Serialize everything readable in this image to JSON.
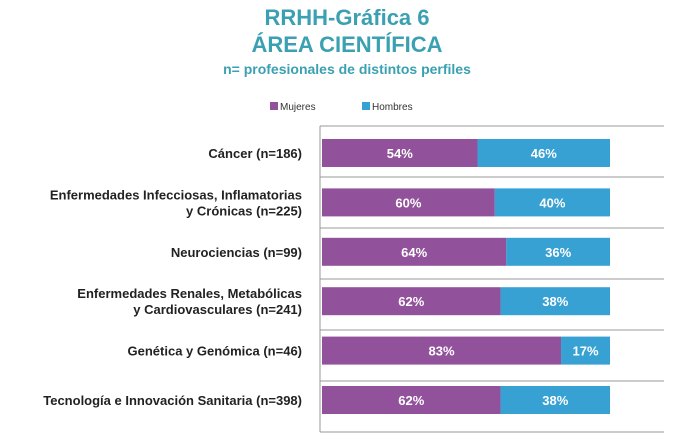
{
  "title": "RRHH-Gráfica 6",
  "subtitle": "ÁREA CIENTÍFICA",
  "note": "n= profesionales de distintos perfiles",
  "colors": {
    "mujeres": "#92529b",
    "hombres": "#37a1d3",
    "grid": "#999999",
    "title": "#3aa0b2"
  },
  "chart_data": {
    "type": "bar",
    "orientation": "horizontal",
    "stacked": true,
    "title": "ÁREA CIENTÍFICA",
    "xlim": [
      0,
      100
    ],
    "legend": [
      "Mujeres",
      "Hombres"
    ],
    "categories": [
      [
        "Cáncer (n=186)"
      ],
      [
        "Enfermedades Infecciosas, Inflamatorias",
        "y Crónicas (n=225)"
      ],
      [
        "Neurociencias (n=99)"
      ],
      [
        "Enfermedades Renales, Metabólicas",
        "y Cardiovasculares (n=241)"
      ],
      [
        "Genética y Genómica (n=46)"
      ],
      [
        "Tecnología e Innovación Sanitaria (n=398)"
      ]
    ],
    "series": [
      {
        "name": "Mujeres",
        "values": [
          54,
          60,
          64,
          62,
          83,
          62
        ],
        "labels": [
          "54%",
          "60%",
          "64%",
          "62%",
          "83%",
          "62%"
        ]
      },
      {
        "name": "Hombres",
        "values": [
          46,
          40,
          36,
          38,
          17,
          38
        ],
        "labels": [
          "46%",
          "40%",
          "36%",
          "38%",
          "17%",
          "38%"
        ]
      }
    ]
  }
}
